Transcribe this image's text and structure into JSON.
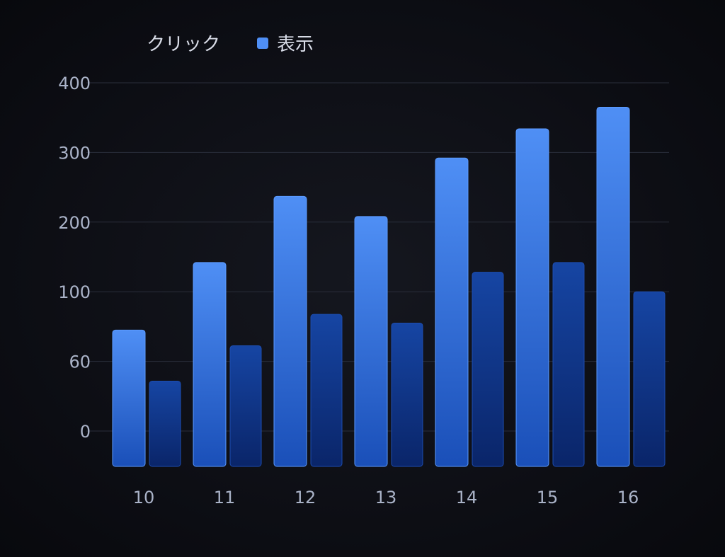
{
  "chart_data": {
    "type": "bar",
    "title": "",
    "xlabel": "",
    "ylabel": "",
    "categories": [
      "10",
      "11",
      "12",
      "13",
      "14",
      "15",
      "16"
    ],
    "series": [
      {
        "name": "クリック",
        "color": "#4f8ff5",
        "values": [
          78,
          142,
          237,
          208,
          292,
          334,
          365
        ]
      },
      {
        "name": "表示",
        "color": "#123a8f",
        "values": [
          43,
          69,
          87,
          82,
          128,
          142,
          100
        ]
      }
    ],
    "y_ticks": [
      0,
      60,
      100,
      200,
      300,
      400
    ],
    "ylim": [
      0,
      400
    ],
    "grid": true,
    "legend": {
      "placement": "top-left",
      "entries": [
        "クリック",
        "表示"
      ],
      "swatch_color": "#4f8ff5"
    }
  }
}
